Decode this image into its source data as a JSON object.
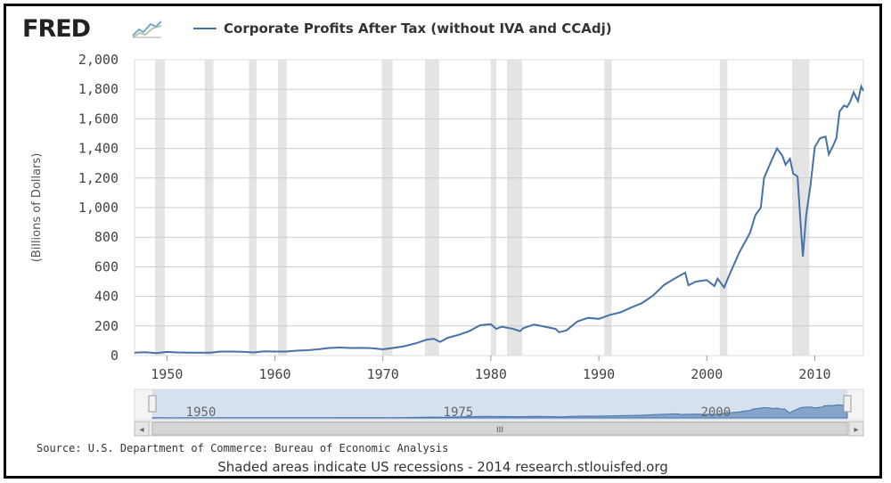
{
  "header": {
    "logo_text": "FRED",
    "logo_icon": "chart-line-icon"
  },
  "legend": {
    "label": "Corporate Profits After Tax (without IVA and CCAdj)"
  },
  "footer": {
    "source": "Source: U.S. Department of Commerce: Bureau of Economic Analysis",
    "note": "Shaded areas indicate US recessions - 2014 research.stlouisfed.org"
  },
  "navigator": {
    "ticks": [
      "1950",
      "1975",
      "2000"
    ],
    "scroll_grip": "III",
    "left_arrow": "◂",
    "right_arrow": "▸"
  },
  "colors": {
    "series": "#4572a7",
    "recession": "#e4e4e4",
    "grid": "#cccccc",
    "navigator_fill": "#c9d9ee"
  },
  "chart_data": {
    "type": "line",
    "ylabel": "(Billions of Dollars)",
    "xlabel": "",
    "xlim": [
      1947,
      2014.5
    ],
    "ylim": [
      0,
      2000
    ],
    "x_ticks": [
      "1950",
      "1960",
      "1970",
      "1980",
      "1990",
      "2000",
      "2010"
    ],
    "y_ticks": [
      "0",
      "200",
      "400",
      "600",
      "800",
      "1,000",
      "1,200",
      "1,400",
      "1,600",
      "1,800",
      "2,000"
    ],
    "grid": true,
    "legend_position": "top",
    "recessions": [
      [
        1948.9,
        1949.8
      ],
      [
        1953.5,
        1954.3
      ],
      [
        1957.6,
        1958.3
      ],
      [
        1960.3,
        1961.1
      ],
      [
        1969.9,
        1970.9
      ],
      [
        1973.9,
        1975.2
      ],
      [
        1980.0,
        1980.5
      ],
      [
        1981.5,
        1982.9
      ],
      [
        1990.5,
        1991.2
      ],
      [
        2001.2,
        2001.9
      ],
      [
        2007.9,
        2009.5
      ]
    ],
    "series": [
      {
        "name": "Corporate Profits After Tax (without IVA and CCAdj)",
        "points": [
          [
            1947,
            19
          ],
          [
            1948,
            22
          ],
          [
            1949,
            17
          ],
          [
            1950,
            25
          ],
          [
            1951,
            21
          ],
          [
            1952,
            19
          ],
          [
            1953,
            20
          ],
          [
            1954,
            19
          ],
          [
            1955,
            27
          ],
          [
            1956,
            27
          ],
          [
            1957,
            26
          ],
          [
            1958,
            21
          ],
          [
            1959,
            29
          ],
          [
            1960,
            27
          ],
          [
            1961,
            27
          ],
          [
            1962,
            33
          ],
          [
            1963,
            36
          ],
          [
            1964,
            42
          ],
          [
            1965,
            51
          ],
          [
            1966,
            54
          ],
          [
            1967,
            51
          ],
          [
            1968,
            52
          ],
          [
            1969,
            50
          ],
          [
            1970,
            42
          ],
          [
            1971,
            52
          ],
          [
            1972,
            63
          ],
          [
            1973,
            82
          ],
          [
            1974,
            106
          ],
          [
            1974.7,
            114
          ],
          [
            1975.3,
            93
          ],
          [
            1976,
            120
          ],
          [
            1977,
            140
          ],
          [
            1978,
            165
          ],
          [
            1979,
            205
          ],
          [
            1980,
            212
          ],
          [
            1980.5,
            180
          ],
          [
            1981,
            195
          ],
          [
            1982,
            182
          ],
          [
            1982.7,
            165
          ],
          [
            1983,
            185
          ],
          [
            1984,
            210
          ],
          [
            1985,
            195
          ],
          [
            1986,
            180
          ],
          [
            1986.3,
            158
          ],
          [
            1987,
            170
          ],
          [
            1988,
            230
          ],
          [
            1989,
            255
          ],
          [
            1990,
            248
          ],
          [
            1991,
            275
          ],
          [
            1992,
            292
          ],
          [
            1993,
            325
          ],
          [
            1994,
            355
          ],
          [
            1995,
            405
          ],
          [
            1996,
            475
          ],
          [
            1997,
            520
          ],
          [
            1998,
            560
          ],
          [
            1998.3,
            475
          ],
          [
            1999,
            500
          ],
          [
            2000,
            510
          ],
          [
            2000.7,
            470
          ],
          [
            2001,
            520
          ],
          [
            2001.6,
            460
          ],
          [
            2002,
            530
          ],
          [
            2003,
            695
          ],
          [
            2004,
            830
          ],
          [
            2004.5,
            950
          ],
          [
            2005,
            1000
          ],
          [
            2005.3,
            1200
          ],
          [
            2006,
            1320
          ],
          [
            2006.5,
            1400
          ],
          [
            2007,
            1350
          ],
          [
            2007.3,
            1290
          ],
          [
            2007.7,
            1330
          ],
          [
            2008,
            1230
          ],
          [
            2008.4,
            1210
          ],
          [
            2008.7,
            880
          ],
          [
            2008.9,
            670
          ],
          [
            2009.2,
            950
          ],
          [
            2009.6,
            1150
          ],
          [
            2010,
            1410
          ],
          [
            2010.5,
            1470
          ],
          [
            2011,
            1480
          ],
          [
            2011.3,
            1360
          ],
          [
            2011.7,
            1420
          ],
          [
            2012,
            1470
          ],
          [
            2012.3,
            1650
          ],
          [
            2012.7,
            1690
          ],
          [
            2013,
            1680
          ],
          [
            2013.3,
            1720
          ],
          [
            2013.6,
            1780
          ],
          [
            2014,
            1720
          ],
          [
            2014.3,
            1820
          ],
          [
            2014.5,
            1790
          ]
        ]
      }
    ]
  }
}
